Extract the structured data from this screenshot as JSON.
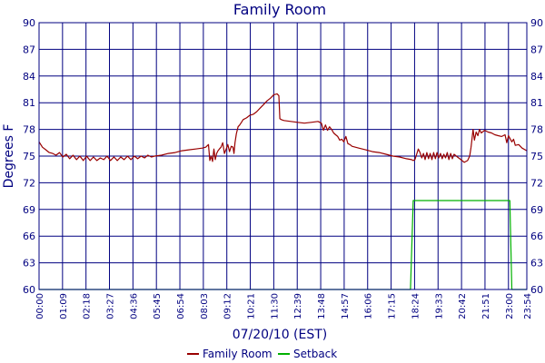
{
  "chart_data": {
    "type": "line",
    "title": "Family Room",
    "xlabel": "07/20/10 (EST)",
    "ylabel": "Degrees F",
    "ylim": [
      60,
      90
    ],
    "y_ticks": [
      60,
      63,
      66,
      69,
      72,
      75,
      78,
      81,
      84,
      87,
      90
    ],
    "x_unit": "minutes since 00:00",
    "xlim": [
      0,
      1434
    ],
    "x_ticks": [
      {
        "label": "00:00",
        "x": 0
      },
      {
        "label": "01:09",
        "x": 69
      },
      {
        "label": "02:18",
        "x": 138
      },
      {
        "label": "03:27",
        "x": 207
      },
      {
        "label": "04:36",
        "x": 276
      },
      {
        "label": "05:45",
        "x": 345
      },
      {
        "label": "06:54",
        "x": 414
      },
      {
        "label": "08:03",
        "x": 483
      },
      {
        "label": "09:12",
        "x": 552
      },
      {
        "label": "10:21",
        "x": 621
      },
      {
        "label": "11:30",
        "x": 690
      },
      {
        "label": "12:39",
        "x": 759
      },
      {
        "label": "13:48",
        "x": 828
      },
      {
        "label": "14:57",
        "x": 897
      },
      {
        "label": "16:06",
        "x": 966
      },
      {
        "label": "17:15",
        "x": 1035
      },
      {
        "label": "18:24",
        "x": 1104
      },
      {
        "label": "19:33",
        "x": 1173
      },
      {
        "label": "20:42",
        "x": 1242
      },
      {
        "label": "21:51",
        "x": 1311
      },
      {
        "label": "23:00",
        "x": 1380
      },
      {
        "label": "23:54",
        "x": 1434
      }
    ],
    "grid": true,
    "legend_position": "bottom-center",
    "series": [
      {
        "name": "Family Room",
        "color": "#990000",
        "points": [
          [
            0,
            76.6
          ],
          [
            10,
            76.0
          ],
          [
            20,
            75.7
          ],
          [
            30,
            75.4
          ],
          [
            40,
            75.3
          ],
          [
            50,
            75.1
          ],
          [
            60,
            75.4
          ],
          [
            70,
            74.9
          ],
          [
            80,
            75.2
          ],
          [
            90,
            74.7
          ],
          [
            100,
            75.1
          ],
          [
            110,
            74.6
          ],
          [
            120,
            75.0
          ],
          [
            130,
            74.5
          ],
          [
            140,
            75.0
          ],
          [
            150,
            74.5
          ],
          [
            160,
            74.9
          ],
          [
            170,
            74.5
          ],
          [
            180,
            74.8
          ],
          [
            190,
            74.6
          ],
          [
            200,
            75.0
          ],
          [
            210,
            74.5
          ],
          [
            220,
            74.9
          ],
          [
            230,
            74.5
          ],
          [
            240,
            74.9
          ],
          [
            250,
            74.6
          ],
          [
            260,
            75.0
          ],
          [
            270,
            74.6
          ],
          [
            280,
            75.0
          ],
          [
            290,
            74.7
          ],
          [
            300,
            75.0
          ],
          [
            310,
            74.8
          ],
          [
            320,
            75.1
          ],
          [
            330,
            74.9
          ],
          [
            340,
            75.0
          ],
          [
            360,
            75.1
          ],
          [
            380,
            75.3
          ],
          [
            400,
            75.4
          ],
          [
            420,
            75.6
          ],
          [
            440,
            75.7
          ],
          [
            460,
            75.8
          ],
          [
            480,
            75.9
          ],
          [
            490,
            76.0
          ],
          [
            498,
            76.3
          ],
          [
            502,
            74.5
          ],
          [
            506,
            75.0
          ],
          [
            510,
            74.4
          ],
          [
            514,
            75.8
          ],
          [
            518,
            74.6
          ],
          [
            522,
            75.3
          ],
          [
            526,
            75.6
          ],
          [
            530,
            75.8
          ],
          [
            535,
            76.0
          ],
          [
            540,
            76.5
          ],
          [
            545,
            75.3
          ],
          [
            550,
            75.8
          ],
          [
            555,
            76.3
          ],
          [
            560,
            75.5
          ],
          [
            565,
            76.1
          ],
          [
            570,
            76.0
          ],
          [
            573,
            75.3
          ],
          [
            576,
            76.5
          ],
          [
            580,
            77.5
          ],
          [
            585,
            78.3
          ],
          [
            590,
            78.5
          ],
          [
            595,
            78.8
          ],
          [
            600,
            79.1
          ],
          [
            610,
            79.3
          ],
          [
            620,
            79.6
          ],
          [
            630,
            79.7
          ],
          [
            640,
            80.0
          ],
          [
            650,
            80.4
          ],
          [
            660,
            80.8
          ],
          [
            670,
            81.2
          ],
          [
            680,
            81.5
          ],
          [
            690,
            81.9
          ],
          [
            700,
            82.0
          ],
          [
            705,
            81.8
          ],
          [
            708,
            79.2
          ],
          [
            712,
            79.1
          ],
          [
            720,
            79.0
          ],
          [
            740,
            78.9
          ],
          [
            760,
            78.8
          ],
          [
            780,
            78.7
          ],
          [
            800,
            78.8
          ],
          [
            820,
            78.9
          ],
          [
            830,
            78.7
          ],
          [
            836,
            77.9
          ],
          [
            842,
            78.5
          ],
          [
            848,
            77.9
          ],
          [
            854,
            78.3
          ],
          [
            860,
            78.0
          ],
          [
            866,
            77.6
          ],
          [
            872,
            77.4
          ],
          [
            878,
            77.2
          ],
          [
            884,
            76.8
          ],
          [
            890,
            76.9
          ],
          [
            896,
            76.6
          ],
          [
            902,
            77.2
          ],
          [
            908,
            76.4
          ],
          [
            914,
            76.3
          ],
          [
            920,
            76.1
          ],
          [
            940,
            75.9
          ],
          [
            960,
            75.7
          ],
          [
            980,
            75.5
          ],
          [
            1000,
            75.4
          ],
          [
            1020,
            75.2
          ],
          [
            1040,
            75.0
          ],
          [
            1060,
            74.9
          ],
          [
            1080,
            74.7
          ],
          [
            1095,
            74.6
          ],
          [
            1100,
            74.5
          ],
          [
            1105,
            74.6
          ],
          [
            1110,
            75.2
          ],
          [
            1115,
            75.8
          ],
          [
            1120,
            75.4
          ],
          [
            1125,
            74.8
          ],
          [
            1130,
            75.3
          ],
          [
            1135,
            74.6
          ],
          [
            1140,
            75.4
          ],
          [
            1145,
            74.7
          ],
          [
            1150,
            75.3
          ],
          [
            1155,
            74.6
          ],
          [
            1160,
            75.4
          ],
          [
            1165,
            74.7
          ],
          [
            1170,
            75.4
          ],
          [
            1175,
            74.8
          ],
          [
            1180,
            75.3
          ],
          [
            1185,
            74.7
          ],
          [
            1190,
            75.2
          ],
          [
            1195,
            74.8
          ],
          [
            1200,
            75.4
          ],
          [
            1205,
            74.6
          ],
          [
            1210,
            75.3
          ],
          [
            1215,
            74.7
          ],
          [
            1220,
            75.2
          ],
          [
            1230,
            74.9
          ],
          [
            1240,
            74.6
          ],
          [
            1250,
            74.3
          ],
          [
            1260,
            74.5
          ],
          [
            1266,
            75.0
          ],
          [
            1270,
            76.0
          ],
          [
            1273,
            77.0
          ],
          [
            1276,
            78.0
          ],
          [
            1280,
            76.8
          ],
          [
            1285,
            77.7
          ],
          [
            1290,
            77.3
          ],
          [
            1295,
            78.0
          ],
          [
            1300,
            77.6
          ],
          [
            1310,
            77.9
          ],
          [
            1320,
            77.7
          ],
          [
            1330,
            77.6
          ],
          [
            1340,
            77.4
          ],
          [
            1350,
            77.3
          ],
          [
            1360,
            77.2
          ],
          [
            1370,
            77.4
          ],
          [
            1375,
            76.5
          ],
          [
            1380,
            77.3
          ],
          [
            1390,
            76.6
          ],
          [
            1395,
            76.9
          ],
          [
            1400,
            76.2
          ],
          [
            1410,
            76.3
          ],
          [
            1420,
            75.9
          ],
          [
            1434,
            75.6
          ]
        ]
      },
      {
        "name": "Setback",
        "color": "#00b000",
        "points": [
          [
            0,
            60
          ],
          [
            1092,
            60
          ],
          [
            1100,
            70
          ],
          [
            1384,
            70
          ],
          [
            1390,
            60
          ],
          [
            1434,
            60
          ]
        ]
      }
    ]
  }
}
